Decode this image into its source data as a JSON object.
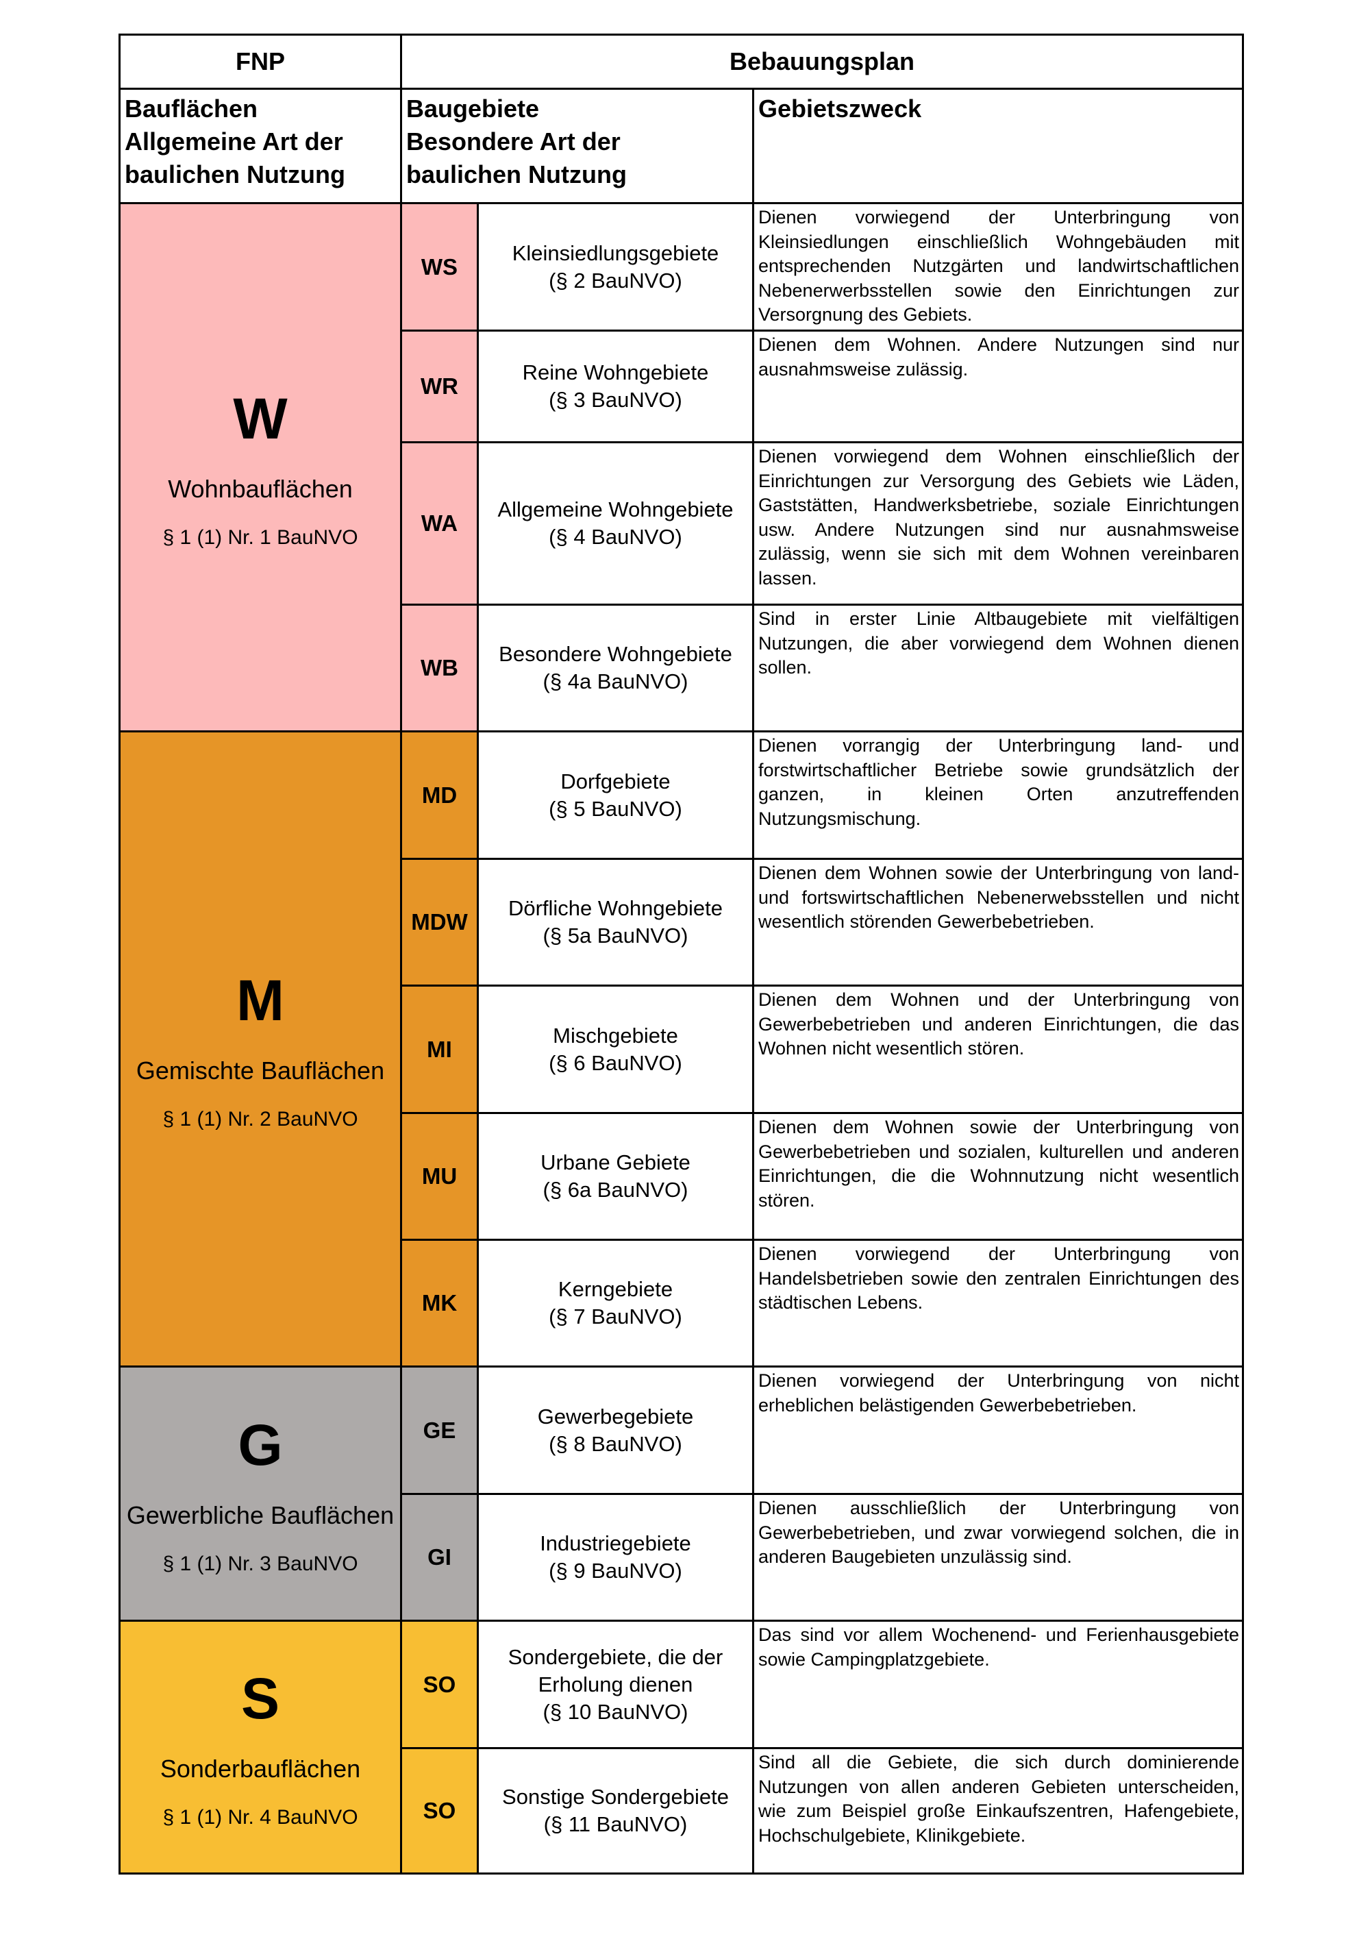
{
  "header": {
    "fnp": "FNP",
    "bebauungsplan": "Bebauungsplan",
    "col1": [
      "Bauflächen",
      "Allgemeine Art der",
      "baulichen Nutzung"
    ],
    "col2": [
      "Baugebiete",
      "Besondere Art der",
      "baulichen Nutzung"
    ],
    "col3": "Gebietszweck"
  },
  "colors": {
    "W": "#FDBABA",
    "M": "#E69527",
    "G": "#ADAAA9",
    "S": "#F8BE33"
  },
  "groups": [
    {
      "letter": "W",
      "name": "Wohnbauflächen",
      "ref": "§ 1 (1) Nr. 1 BauNVO",
      "color": "#FDBABA",
      "rows": [
        {
          "code": "WS",
          "name": "Kleinsiedlungsgebiete",
          "ref": "(§ 2 BauNVO)",
          "desc": "Dienen vorwiegend der Unterbringung von Kleinsiedlungen einschließlich Wohngebäuden mit entsprechenden Nutzgärten und landwirtschaftlichen Nebenerwerbsstellen sowie den Einrichtungen zur Versorgnung des Gebiets."
        },
        {
          "code": "WR",
          "name": "Reine Wohngebiete",
          "ref": "(§ 3 BauNVO)",
          "desc": "Dienen dem Wohnen. Andere Nutzungen sind nur ausnahmsweise zulässig."
        },
        {
          "code": "WA",
          "name": "Allgemeine Wohngebiete",
          "ref": "(§ 4 BauNVO)",
          "desc": "Dienen vorwiegend dem Wohnen einschließlich der Einrichtungen zur Versorgung des Gebiets wie Läden, Gaststätten, Handwerksbetriebe, soziale Einrichtungen usw. Andere Nutzungen sind nur ausnahmsweise zulässig, wenn sie sich mit dem Wohnen vereinbaren lassen."
        },
        {
          "code": "WB",
          "name": "Besondere Wohngebiete",
          "ref": "(§ 4a BauNVO)",
          "desc": "Sind in erster Linie Altbaugebiete mit vielfältigen Nutzungen, die aber vorwiegend dem Wohnen dienen sollen."
        }
      ]
    },
    {
      "letter": "M",
      "name": "Gemischte Bauflächen",
      "ref": "§ 1 (1) Nr. 2 BauNVO",
      "color": "#E69527",
      "rows": [
        {
          "code": "MD",
          "name": "Dorfgebiete",
          "ref": "(§ 5 BauNVO)",
          "desc": "Dienen vorrangig der Unterbringung land- und forstwirtschaftlicher Betriebe sowie grundsätzlich der ganzen, in kleinen Orten anzutreffenden Nutzungsmischung."
        },
        {
          "code": "MDW",
          "name": "Dörfliche Wohngebiete",
          "ref": "(§ 5a BauNVO)",
          "desc": "Dienen dem Wohnen sowie der Unterbringung von land- und fortswirtschaftlichen Nebenerwebsstellen und nicht wesentlich störenden Gewerbebetrieben."
        },
        {
          "code": "MI",
          "name": "Mischgebiete",
          "ref": "(§ 6 BauNVO)",
          "desc": "Dienen dem  Wohnen und der Unterbringung von Gewerbebetrieben und anderen Einrichtungen, die das Wohnen nicht wesentlich stören."
        },
        {
          "code": "MU",
          "name": "Urbane Gebiete",
          "ref": "(§ 6a BauNVO)",
          "desc": "Dienen dem Wohnen sowie der Unterbringung von Gewerbebetrieben und sozialen, kulturellen und anderen Einrichtungen, die die Wohnnutzung nicht wesentlich stören."
        },
        {
          "code": "MK",
          "name": "Kerngebiete",
          "ref": "(§ 7 BauNVO)",
          "desc": "Dienen vorwiegend der Unterbringung von Handelsbetrieben sowie den zentralen Einrichtungen des städtischen Lebens."
        }
      ]
    },
    {
      "letter": "G",
      "name": "Gewerbliche Bauflächen",
      "ref": "§ 1 (1) Nr. 3 BauNVO",
      "color": "#ADAAA9",
      "rows": [
        {
          "code": "GE",
          "name": "Gewerbegebiete",
          "ref": "(§ 8 BauNVO)",
          "desc": "Dienen vorwiegend der Unterbringung von nicht erheblichen belästigenden Gewerbebetrieben."
        },
        {
          "code": "GI",
          "name": "Industriegebiete",
          "ref": "(§ 9 BauNVO)",
          "desc": "Dienen ausschließlich der Unterbringung von Gewerbebetrieben, und zwar vorwiegend solchen, die in anderen Baugebieten unzulässig sind."
        }
      ]
    },
    {
      "letter": "S",
      "name": "Sonderbauflächen",
      "ref": "§ 1 (1) Nr. 4 BauNVO",
      "color": "#F8BE33",
      "rows": [
        {
          "code": "SO",
          "name": "Sondergebiete, die der Erholung dienen",
          "ref": "(§ 10 BauNVO)",
          "desc": "Das sind vor allem Wochenend- und Ferienhausgebiete sowie Campingplatzgebiete."
        },
        {
          "code": "SO",
          "name": "Sonstige Sondergebiete",
          "ref": "(§ 11 BauNVO)",
          "desc": "Sind all die Gebiete, die sich durch dominierende Nutzungen von allen anderen Gebieten unterscheiden, wie zum Beispiel große Einkaufszentren, Hafengebiete, Hochschulgebiete, Klinikgebiete."
        }
      ]
    }
  ]
}
